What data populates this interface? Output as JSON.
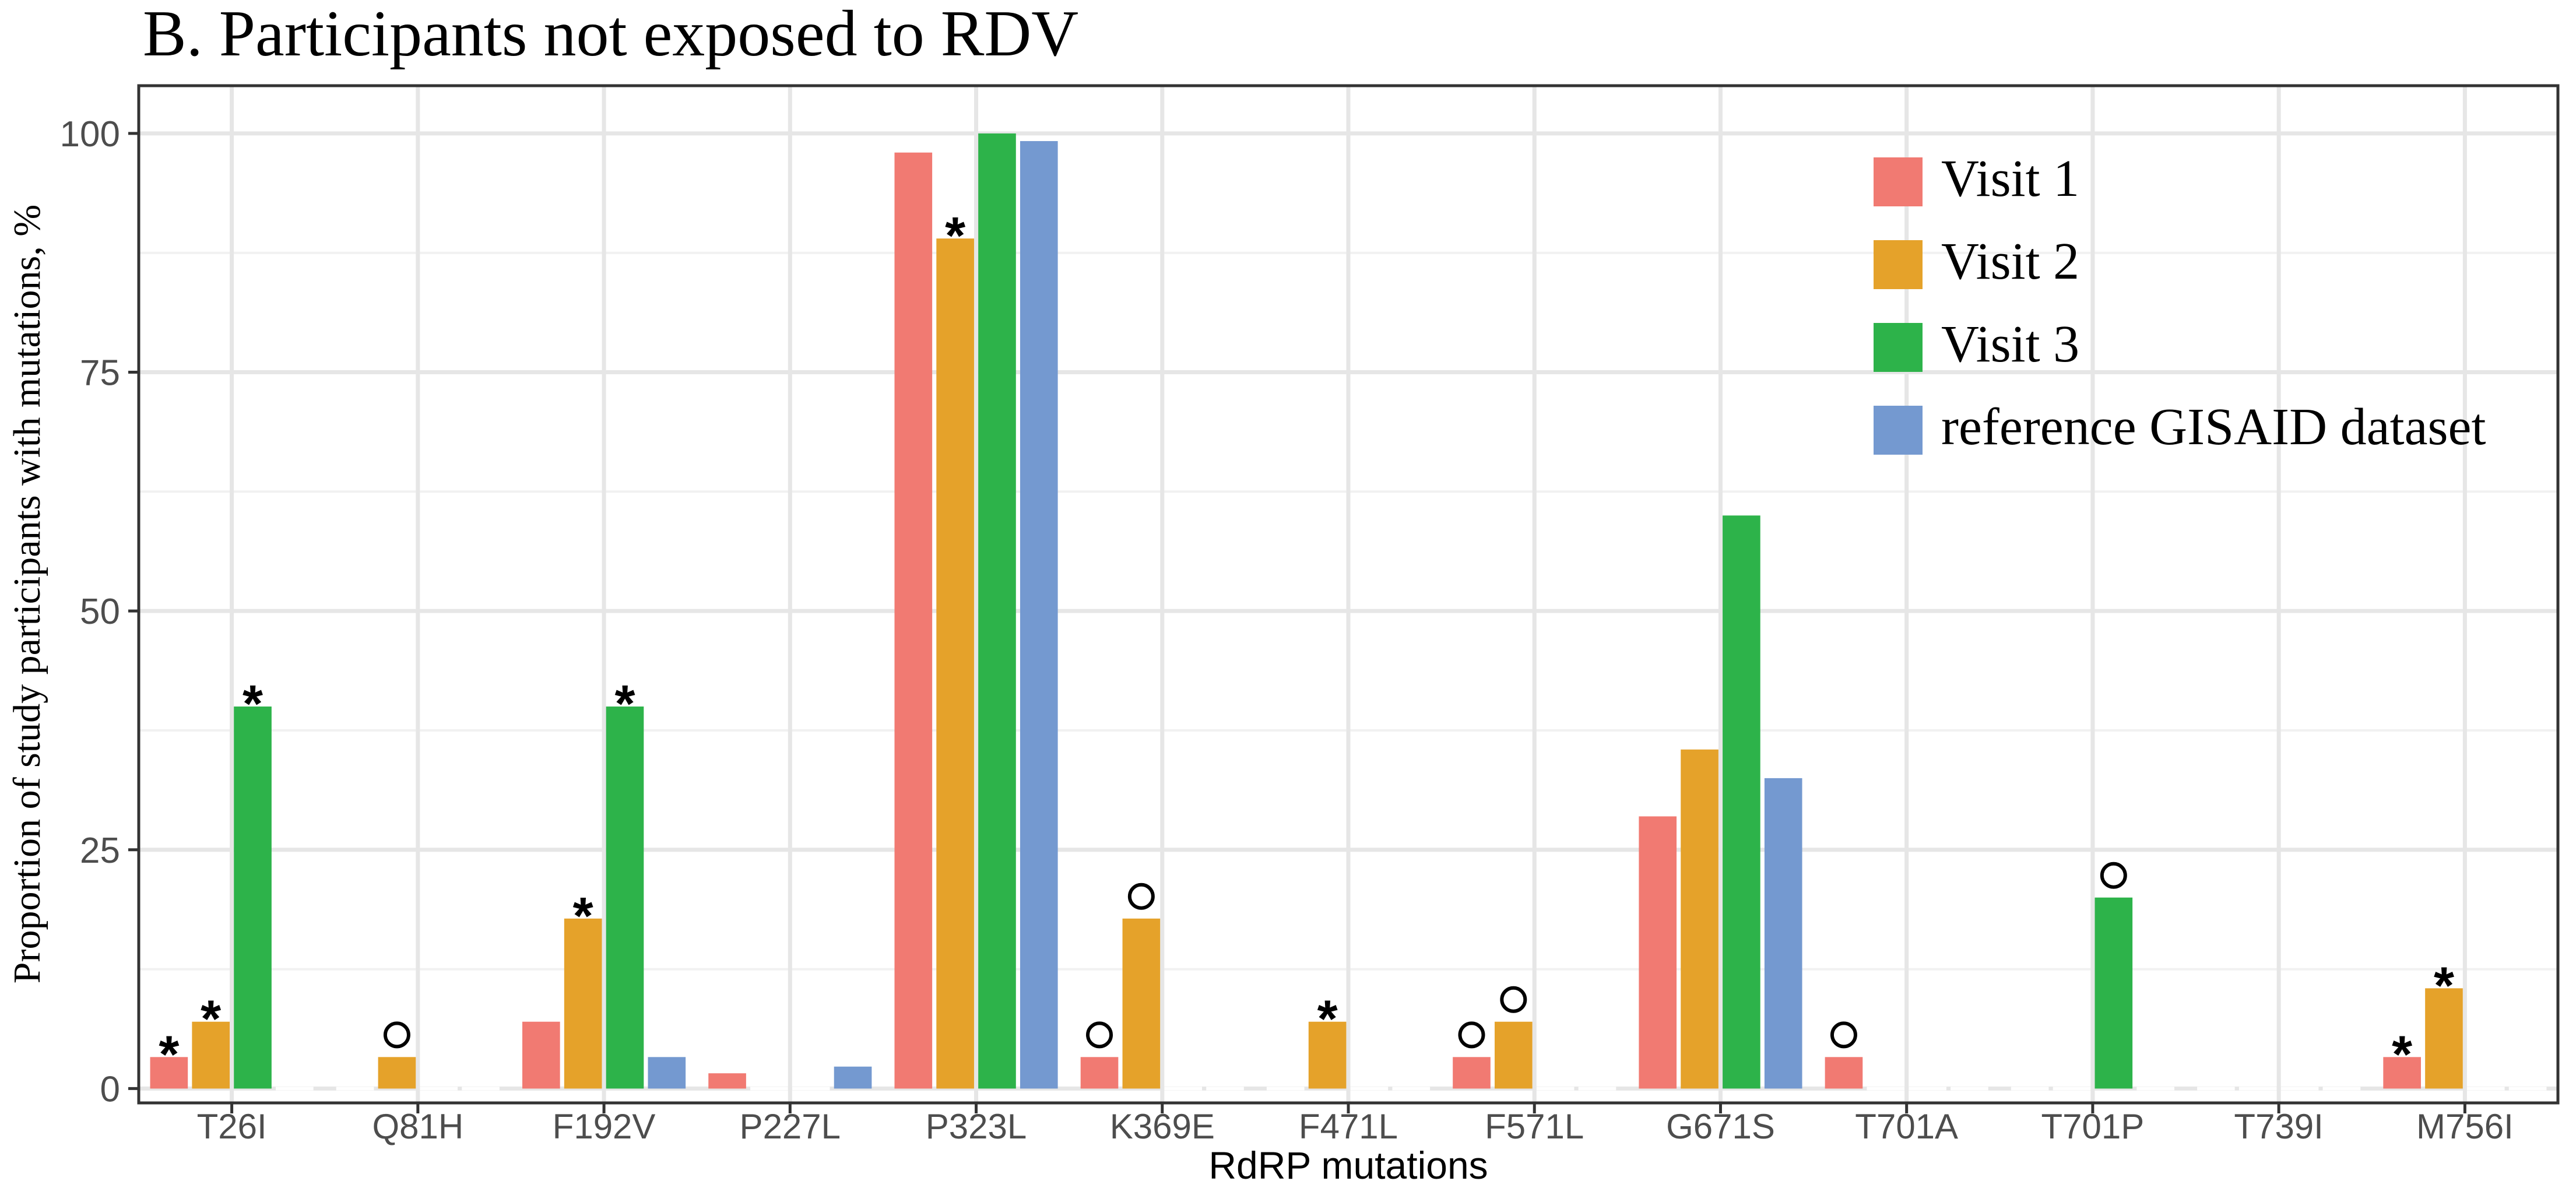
{
  "chart_data": {
    "type": "bar",
    "title": "B. Participants not exposed to RDV",
    "xlabel": "RdRP mutations",
    "ylabel": "Proportion of study participants with mutations, %",
    "ylim": [
      -1.5,
      105
    ],
    "yticks": [
      0,
      25,
      50,
      75,
      100
    ],
    "grid": true,
    "legend_position": "top-right",
    "categories": [
      "T26I",
      "Q81H",
      "F192V",
      "P227L",
      "P323L",
      "K369E",
      "F471L",
      "F571L",
      "G671S",
      "T701A",
      "T701P",
      "T739I",
      "M756I"
    ],
    "series": [
      {
        "name": "Visit 1",
        "color": "#F17A72",
        "values": [
          3.3,
          0,
          7.0,
          1.6,
          98.0,
          3.3,
          0,
          3.3,
          28.5,
          3.3,
          0,
          0,
          3.3
        ]
      },
      {
        "name": "Visit 2",
        "color": "#E5A22A",
        "values": [
          7.0,
          3.3,
          17.8,
          0,
          89.0,
          17.8,
          7.0,
          7.0,
          35.5,
          0,
          0,
          0,
          10.5
        ]
      },
      {
        "name": "Visit 3",
        "color": "#2DB34A",
        "values": [
          40.0,
          0,
          40.0,
          0,
          100.0,
          0,
          0,
          0,
          60.0,
          0,
          20.0,
          0,
          0
        ]
      },
      {
        "name": "reference GISAID dataset",
        "color": "#7499D0",
        "values": [
          0,
          0,
          3.3,
          2.3,
          99.2,
          0,
          0,
          0,
          32.5,
          0,
          0,
          0,
          0
        ]
      }
    ],
    "annotations": [
      {
        "category": "T26I",
        "series": "Visit 1",
        "symbol": "*"
      },
      {
        "category": "T26I",
        "series": "Visit 2",
        "symbol": "*"
      },
      {
        "category": "T26I",
        "series": "Visit 3",
        "symbol": "*"
      },
      {
        "category": "Q81H",
        "series": "Visit 2",
        "symbol": "○"
      },
      {
        "category": "F192V",
        "series": "Visit 2",
        "symbol": "*"
      },
      {
        "category": "F192V",
        "series": "Visit 3",
        "symbol": "*"
      },
      {
        "category": "P323L",
        "series": "Visit 2",
        "symbol": "*"
      },
      {
        "category": "K369E",
        "series": "Visit 1",
        "symbol": "○"
      },
      {
        "category": "K369E",
        "series": "Visit 2",
        "symbol": "○"
      },
      {
        "category": "F471L",
        "series": "Visit 2",
        "symbol": "*"
      },
      {
        "category": "F571L",
        "series": "Visit 1",
        "symbol": "○"
      },
      {
        "category": "F571L",
        "series": "Visit 2",
        "symbol": "○"
      },
      {
        "category": "T701A",
        "series": "Visit 1",
        "symbol": "○"
      },
      {
        "category": "T701P",
        "series": "Visit 3",
        "symbol": "○"
      },
      {
        "category": "M756I",
        "series": "Visit 1",
        "symbol": "*"
      },
      {
        "category": "M756I",
        "series": "Visit 2",
        "symbol": "*"
      }
    ]
  }
}
